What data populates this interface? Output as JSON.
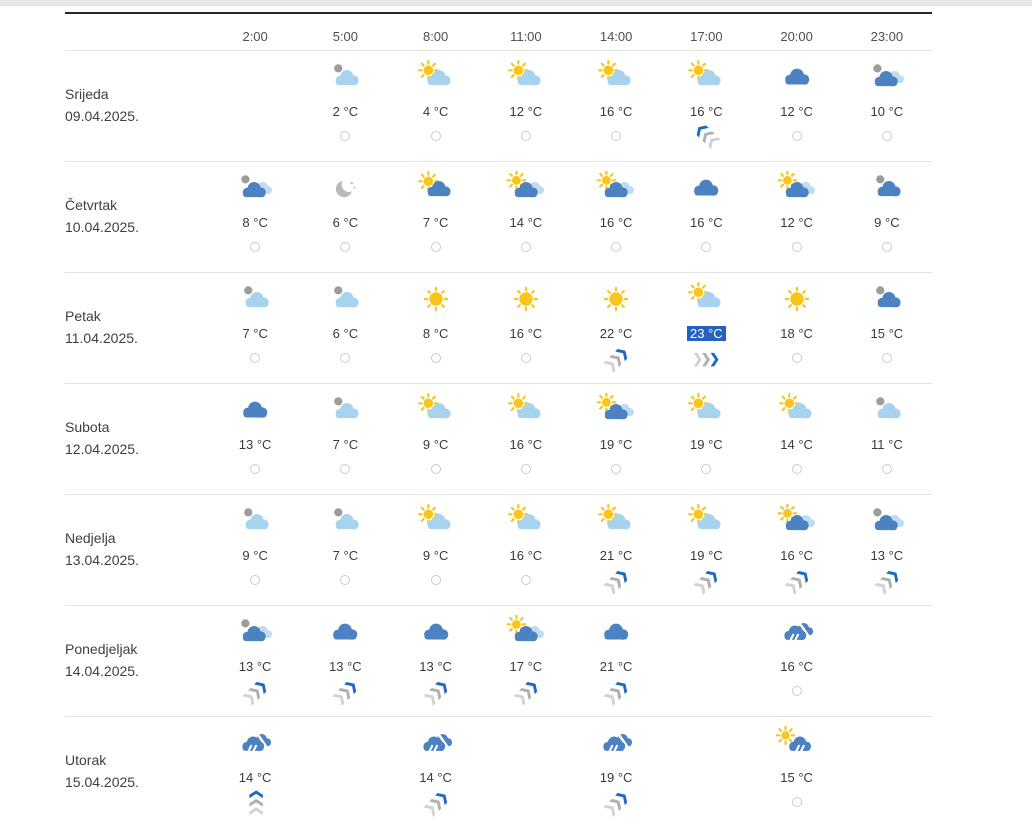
{
  "colors": {
    "selected_temp_bg": "#2661be",
    "wind_accent": "#2069c0",
    "sun": "#f8c51c",
    "cloud_light": "#a8d3ee",
    "cloud_blue": "#4d82c2",
    "cloud_pale": "#bfdcf1",
    "moon_gray": "#b9b9b9",
    "disc_gray": "#9c9c9c"
  },
  "header": {
    "times": [
      "2:00",
      "5:00",
      "8:00",
      "11:00",
      "14:00",
      "17:00",
      "20:00",
      "23:00"
    ]
  },
  "days": [
    {
      "name": "Srijeda",
      "date": "09.04.2025.",
      "cells": [
        null,
        {
          "icon": "cloud-light-gray",
          "temp": "2 °C",
          "indicator": "none"
        },
        {
          "icon": "sun-cloud-light",
          "temp": "4 °C",
          "indicator": "none"
        },
        {
          "icon": "sun-cloud-light",
          "temp": "12 °C",
          "indicator": "none"
        },
        {
          "icon": "sun-cloud-light",
          "temp": "16 °C",
          "indicator": "none"
        },
        {
          "icon": "sun-cloud-light",
          "temp": "16 °C",
          "indicator": "wind-nw"
        },
        {
          "icon": "cloud-blue",
          "temp": "12 °C",
          "indicator": "none"
        },
        {
          "icon": "clouds-blue-gray",
          "temp": "10 °C",
          "indicator": "none"
        }
      ]
    },
    {
      "name": "Četvrtak",
      "date": "10.04.2025.",
      "cells": [
        {
          "icon": "clouds-blue-gray",
          "temp": "8 °C",
          "indicator": "none"
        },
        {
          "icon": "moon",
          "temp": "6 °C",
          "indicator": "none"
        },
        {
          "icon": "sun-cloud-blue",
          "temp": "7 °C",
          "indicator": "none"
        },
        {
          "icon": "sun-clouds-blue",
          "temp": "14 °C",
          "indicator": "none"
        },
        {
          "icon": "sun-clouds-blue",
          "temp": "16 °C",
          "indicator": "none"
        },
        {
          "icon": "cloud-blue",
          "temp": "16 °C",
          "indicator": "none"
        },
        {
          "icon": "sun-clouds-blue",
          "temp": "12 °C",
          "indicator": "none"
        },
        {
          "icon": "cloud-blue-gray",
          "temp": "9 °C",
          "indicator": "none"
        }
      ]
    },
    {
      "name": "Petak",
      "date": "11.04.2025.",
      "cells": [
        {
          "icon": "cloud-light-gray",
          "temp": "7 °C",
          "indicator": "none"
        },
        {
          "icon": "cloud-light-gray",
          "temp": "6 °C",
          "indicator": "none"
        },
        {
          "icon": "sun",
          "temp": "8 °C",
          "indicator": "none"
        },
        {
          "icon": "sun",
          "temp": "16 °C",
          "indicator": "none"
        },
        {
          "icon": "sun",
          "temp": "22 °C",
          "indicator": "wind-ne"
        },
        {
          "icon": "sun-cloud-light",
          "temp": "23 °C",
          "indicator": "wind-e",
          "selected": true
        },
        {
          "icon": "sun",
          "temp": "18 °C",
          "indicator": "none"
        },
        {
          "icon": "cloud-blue-gray",
          "temp": "15 °C",
          "indicator": "none"
        }
      ]
    },
    {
      "name": "Subota",
      "date": "12.04.2025.",
      "cells": [
        {
          "icon": "cloud-blue",
          "temp": "13 °C",
          "indicator": "none"
        },
        {
          "icon": "cloud-light-gray",
          "temp": "7 °C",
          "indicator": "none"
        },
        {
          "icon": "sun-cloud-light",
          "temp": "9 °C",
          "indicator": "none"
        },
        {
          "icon": "sun-cloud-light",
          "temp": "16 °C",
          "indicator": "none"
        },
        {
          "icon": "sun-clouds-blue",
          "temp": "19 °C",
          "indicator": "none"
        },
        {
          "icon": "sun-cloud-light",
          "temp": "19 °C",
          "indicator": "none"
        },
        {
          "icon": "sun-cloud-light",
          "temp": "14 °C",
          "indicator": "none"
        },
        {
          "icon": "cloud-light-gray",
          "temp": "11 °C",
          "indicator": "none"
        }
      ]
    },
    {
      "name": "Nedjelja",
      "date": "13.04.2025.",
      "cells": [
        {
          "icon": "cloud-light-gray",
          "temp": "9 °C",
          "indicator": "none"
        },
        {
          "icon": "cloud-light-gray",
          "temp": "7 °C",
          "indicator": "none"
        },
        {
          "icon": "sun-cloud-light",
          "temp": "9 °C",
          "indicator": "none"
        },
        {
          "icon": "sun-cloud-light",
          "temp": "16 °C",
          "indicator": "none"
        },
        {
          "icon": "sun-cloud-light",
          "temp": "21 °C",
          "indicator": "wind-ne"
        },
        {
          "icon": "sun-cloud-light",
          "temp": "19 °C",
          "indicator": "wind-ne"
        },
        {
          "icon": "sun-clouds-blue",
          "temp": "16 °C",
          "indicator": "wind-ne"
        },
        {
          "icon": "clouds-blue-gray",
          "temp": "13 °C",
          "indicator": "wind-ne"
        }
      ]
    },
    {
      "name": "Ponedjeljak",
      "date": "14.04.2025.",
      "cells": [
        {
          "icon": "clouds-blue-gray",
          "temp": "13 °C",
          "indicator": "wind-ne"
        },
        {
          "icon": "cloud-blue",
          "temp": "13 °C",
          "indicator": "wind-ne"
        },
        {
          "icon": "cloud-blue",
          "temp": "13 °C",
          "indicator": "wind-ne"
        },
        {
          "icon": "sun-clouds-blue",
          "temp": "17 °C",
          "indicator": "wind-ne"
        },
        {
          "icon": "cloud-blue",
          "temp": "21 °C",
          "indicator": "wind-ne"
        },
        null,
        {
          "icon": "rain",
          "temp": "16 °C",
          "indicator": "none"
        },
        null
      ]
    },
    {
      "name": "Utorak",
      "date": "15.04.2025.",
      "cells": [
        {
          "icon": "rain",
          "temp": "14 °C",
          "indicator": "wind-n"
        },
        null,
        {
          "icon": "rain",
          "temp": "14 °C",
          "indicator": "wind-ne"
        },
        null,
        {
          "icon": "rain",
          "temp": "19 °C",
          "indicator": "wind-ne"
        },
        null,
        {
          "icon": "sun-rain",
          "temp": "15 °C",
          "indicator": "none"
        },
        null
      ]
    }
  ]
}
